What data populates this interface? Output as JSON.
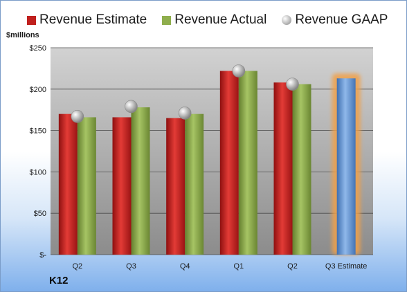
{
  "legend": {
    "estimate_label": "Revenue Estimate",
    "actual_label": "Revenue Actual",
    "gaap_label": "Revenue GAAP"
  },
  "unit_label": "$millions",
  "company": "K12",
  "colors": {
    "estimate": "#c0201e",
    "actual": "#8fae4d",
    "gaap": "#b8b8b8",
    "forecast": "#6f9fd8",
    "forecast_glow": "#f0a04a",
    "plot_bg_top": "#d0d0d0",
    "plot_bg_bottom": "#8e8e8e"
  },
  "chart_data": {
    "type": "bar",
    "categories": [
      "Q2",
      "Q3",
      "Q4",
      "Q1",
      "Q2",
      "Q3 Estimate"
    ],
    "series": [
      {
        "name": "Revenue Estimate",
        "values": [
          170,
          166,
          165,
          222,
          208,
          null
        ]
      },
      {
        "name": "Revenue Actual",
        "values": [
          166,
          178,
          170,
          222,
          206,
          null
        ]
      },
      {
        "name": "Revenue GAAP",
        "values": [
          167,
          179,
          171,
          222,
          206,
          null
        ]
      }
    ],
    "forecast": {
      "category": "Q3 Estimate",
      "value": 213
    },
    "ylim": [
      0,
      250
    ],
    "yticks": [
      0,
      50,
      100,
      150,
      200,
      250
    ],
    "ytick_labels": [
      "$-",
      "$50",
      "$100",
      "$150",
      "$200",
      "$250"
    ],
    "grid": true,
    "legend_position": "top"
  }
}
